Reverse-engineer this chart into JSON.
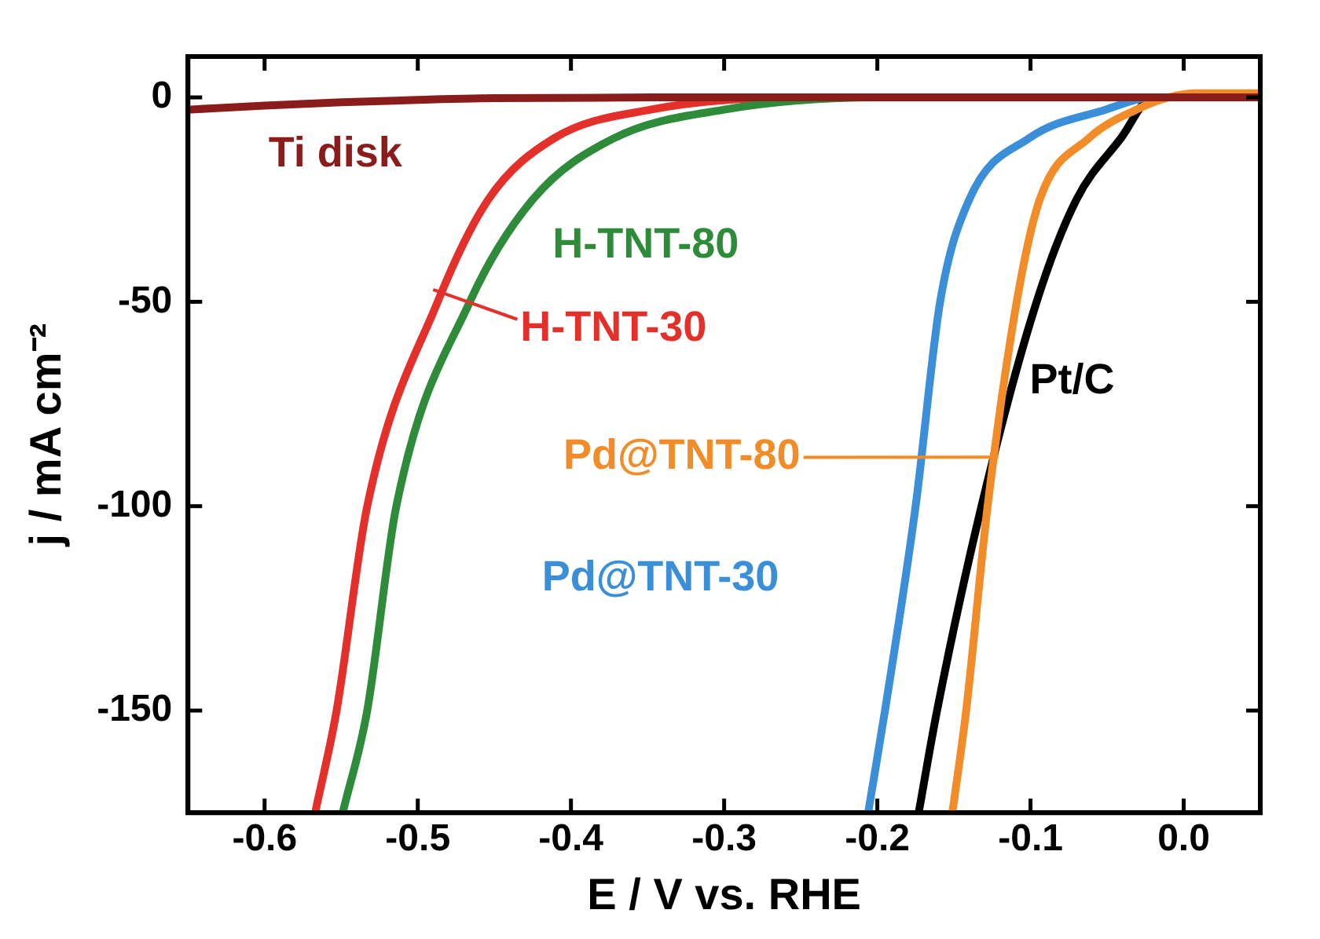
{
  "chart_data": {
    "type": "line",
    "xlabel": "E / V vs. RHE",
    "ylabel": "j / mA cm⁻²",
    "xlim": [
      -0.65,
      0.05
    ],
    "ylim": [
      -175,
      10
    ],
    "xticks": [
      {
        "value": -0.6,
        "label": "-0.6"
      },
      {
        "value": -0.5,
        "label": "-0.5"
      },
      {
        "value": -0.4,
        "label": "-0.4"
      },
      {
        "value": -0.3,
        "label": "-0.3"
      },
      {
        "value": -0.2,
        "label": "-0.2"
      },
      {
        "value": -0.1,
        "label": "-0.1"
      },
      {
        "value": 0,
        "label": "0.0"
      }
    ],
    "yticks": [
      0,
      -50,
      -100,
      -150
    ],
    "grid": false,
    "marker": "none",
    "line_style": "solid",
    "series": [
      {
        "name": "Ti disk",
        "color": "#8b1c1c",
        "x": [
          -0.65,
          -0.6,
          -0.55,
          -0.5,
          -0.45,
          -0.3,
          0.05
        ],
        "values": [
          -3,
          -2,
          -1.2,
          -0.6,
          -0.2,
          0,
          0
        ]
      },
      {
        "name": "H-TNT-80",
        "color": "#2e8b3a",
        "x": [
          -0.549,
          -0.533,
          -0.514,
          -0.466,
          -0.425,
          -0.372,
          -0.3,
          -0.2,
          0.05
        ],
        "values": [
          -175,
          -150,
          -100,
          -50,
          -25,
          -10,
          -3,
          0,
          0
        ]
      },
      {
        "name": "H-TNT-30",
        "color": "#e3302a",
        "x": [
          -0.567,
          -0.553,
          -0.533,
          -0.487,
          -0.454,
          -0.411,
          -0.348,
          -0.25,
          0.05
        ],
        "values": [
          -175,
          -150,
          -100,
          -50,
          -25,
          -10,
          -3,
          0,
          0
        ]
      },
      {
        "name": "Pd@TNT-80",
        "color": "#f28c28",
        "x": [
          -0.151,
          -0.142,
          -0.128,
          -0.109,
          -0.094,
          -0.062,
          -0.031,
          -0.01,
          0.01,
          0.05
        ],
        "values": [
          -175,
          -150,
          -100,
          -50,
          -25,
          -10,
          -3,
          0,
          1,
          1
        ]
      },
      {
        "name": "Pd@TNT-30",
        "color": "#3a8fd8",
        "x": [
          -0.206,
          -0.195,
          -0.175,
          -0.159,
          -0.14,
          -0.101,
          -0.051,
          -0.02,
          0.05
        ],
        "values": [
          -175,
          -150,
          -100,
          -50,
          -25,
          -10,
          -3,
          0,
          0
        ]
      },
      {
        "name": "Pt/C",
        "color": "#000000",
        "x": [
          -0.173,
          -0.161,
          -0.132,
          -0.096,
          -0.07,
          -0.041,
          -0.02,
          0.05
        ],
        "values": [
          -175,
          -150,
          -100,
          -50,
          -25,
          -10,
          0,
          0
        ]
      }
    ]
  }
}
